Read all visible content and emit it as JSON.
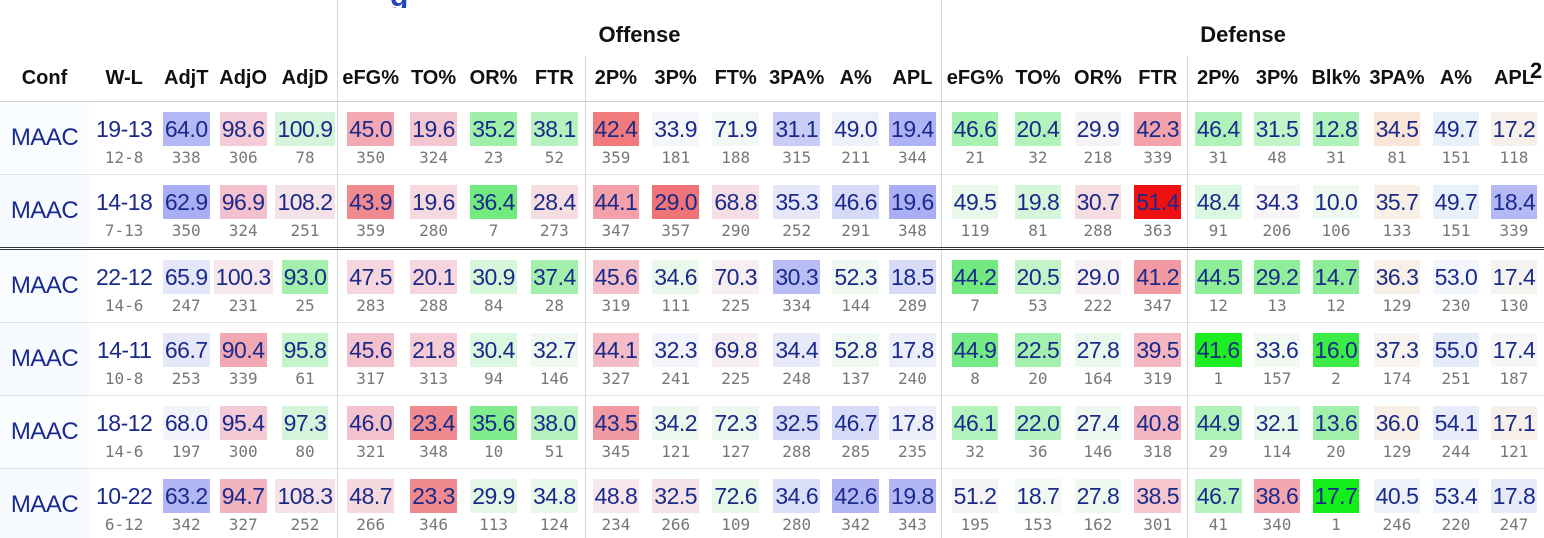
{
  "groups": {
    "offense": "Offense",
    "defense": "Defense"
  },
  "columns": [
    "Conf",
    "W-L",
    "AdjT",
    "AdjO",
    "AdjD",
    "eFG%",
    "TO%",
    "OR%",
    "FTR",
    "2P%",
    "3P%",
    "FT%",
    "3PA%",
    "A%",
    "APL",
    "eFG%",
    "TO%",
    "OR%",
    "FTR",
    "2P%",
    "3P%",
    "Blk%",
    "3PA%",
    "A%",
    "APL"
  ],
  "truncated_left_header": "g",
  "truncated_right_header": "2",
  "rows": [
    {
      "conf": "MAAC",
      "wl": "19-13",
      "wl_conf": "12-8",
      "cells": [
        {
          "v": "64.0",
          "r": "338",
          "bg": "#b4b8f5"
        },
        {
          "v": "98.6",
          "r": "306",
          "bg": "#f4ccd8"
        },
        {
          "v": "100.9",
          "r": "78",
          "bg": "#d4f5dc"
        },
        {
          "v": "45.0",
          "r": "350",
          "bg": "#f2a9b3"
        },
        {
          "v": "19.6",
          "r": "324",
          "bg": "#f4c6d0"
        },
        {
          "v": "35.2",
          "r": "23",
          "bg": "#9ef0a8"
        },
        {
          "v": "38.1",
          "r": "52",
          "bg": "#b6f2c0"
        },
        {
          "v": "42.4",
          "r": "359",
          "bg": "#f17a7c"
        },
        {
          "v": "33.9",
          "r": "181",
          "bg": "#f5f6fb"
        },
        {
          "v": "71.9",
          "r": "188",
          "bg": "#f2f8f3"
        },
        {
          "v": "31.1",
          "r": "315",
          "bg": "#c8ccf6"
        },
        {
          "v": "49.0",
          "r": "211",
          "bg": "#eef0fa"
        },
        {
          "v": "19.4",
          "r": "344",
          "bg": "#aeb3f5"
        },
        {
          "v": "46.6",
          "r": "21",
          "bg": "#a6f2b0"
        },
        {
          "v": "20.4",
          "r": "32",
          "bg": "#b2f3bc"
        },
        {
          "v": "29.9",
          "r": "218",
          "bg": "#f5f3f6"
        },
        {
          "v": "42.3",
          "r": "339",
          "bg": "#f3a2ac"
        },
        {
          "v": "46.4",
          "r": "31",
          "bg": "#b0f3ba"
        },
        {
          "v": "31.5",
          "r": "48",
          "bg": "#c2f5c8"
        },
        {
          "v": "12.8",
          "r": "31",
          "bg": "#b0f3ba"
        },
        {
          "v": "34.5",
          "r": "81",
          "bg": "#f9e6d6"
        },
        {
          "v": "49.7",
          "r": "151",
          "bg": "#e8f1fa"
        },
        {
          "v": "17.2",
          "r": "118",
          "bg": "#f7f0ea"
        }
      ]
    },
    {
      "conf": "MAAC",
      "wl": "14-18",
      "wl_conf": "7-13",
      "cells": [
        {
          "v": "62.9",
          "r": "350",
          "bg": "#a9aef5"
        },
        {
          "v": "96.9",
          "r": "324",
          "bg": "#f3c0ce"
        },
        {
          "v": "108.2",
          "r": "251",
          "bg": "#f5e2e8"
        },
        {
          "v": "43.9",
          "r": "359",
          "bg": "#f08a8f"
        },
        {
          "v": "19.6",
          "r": "280",
          "bg": "#f6d8df"
        },
        {
          "v": "36.4",
          "r": "7",
          "bg": "#72ea80"
        },
        {
          "v": "28.4",
          "r": "273",
          "bg": "#f6dde2"
        },
        {
          "v": "44.1",
          "r": "347",
          "bg": "#f3a0aa"
        },
        {
          "v": "29.0",
          "r": "357",
          "bg": "#f07378"
        },
        {
          "v": "68.8",
          "r": "290",
          "bg": "#f6dfe4"
        },
        {
          "v": "35.3",
          "r": "252",
          "bg": "#e6e8fa"
        },
        {
          "v": "46.6",
          "r": "291",
          "bg": "#d6daf7"
        },
        {
          "v": "19.6",
          "r": "348",
          "bg": "#a9aef5"
        },
        {
          "v": "49.5",
          "r": "119",
          "bg": "#e8f8ea"
        },
        {
          "v": "19.8",
          "r": "81",
          "bg": "#d6f6da"
        },
        {
          "v": "30.7",
          "r": "288",
          "bg": "#f6dde2"
        },
        {
          "v": "51.4",
          "r": "363",
          "bg": "#ee1111"
        },
        {
          "v": "48.4",
          "r": "91",
          "bg": "#dcf7e0"
        },
        {
          "v": "34.3",
          "r": "206",
          "bg": "#f7f5f8"
        },
        {
          "v": "10.0",
          "r": "106",
          "bg": "#f0f9f0"
        },
        {
          "v": "35.7",
          "r": "133",
          "bg": "#f8efe6"
        },
        {
          "v": "49.7",
          "r": "151",
          "bg": "#e8f1fa"
        },
        {
          "v": "18.4",
          "r": "339",
          "bg": "#b4b8f5"
        }
      ]
    },
    {
      "conf": "MAAC",
      "wl": "22-12",
      "wl_conf": "14-6",
      "cells": [
        {
          "v": "65.9",
          "r": "247",
          "bg": "#e4e6fa"
        },
        {
          "v": "100.3",
          "r": "231",
          "bg": "#f6e7ec"
        },
        {
          "v": "93.0",
          "r": "25",
          "bg": "#a2f0ac"
        },
        {
          "v": "47.5",
          "r": "283",
          "bg": "#f6d6de"
        },
        {
          "v": "20.1",
          "r": "288",
          "bg": "#f6d6de"
        },
        {
          "v": "30.9",
          "r": "84",
          "bg": "#d6f6da"
        },
        {
          "v": "37.4",
          "r": "28",
          "bg": "#a2f0ac"
        },
        {
          "v": "45.6",
          "r": "319",
          "bg": "#f4c0ca"
        },
        {
          "v": "34.6",
          "r": "111",
          "bg": "#eaf8ec"
        },
        {
          "v": "70.3",
          "r": "225",
          "bg": "#f6eef1"
        },
        {
          "v": "30.3",
          "r": "334",
          "bg": "#b9bdf5"
        },
        {
          "v": "52.3",
          "r": "144",
          "bg": "#eef7f0"
        },
        {
          "v": "18.5",
          "r": "289",
          "bg": "#d8dbf8"
        },
        {
          "v": "44.2",
          "r": "7",
          "bg": "#72ea80"
        },
        {
          "v": "20.5",
          "r": "53",
          "bg": "#c2f4c8"
        },
        {
          "v": "29.0",
          "r": "222",
          "bg": "#f6f0f3"
        },
        {
          "v": "41.2",
          "r": "347",
          "bg": "#f29aa2"
        },
        {
          "v": "44.5",
          "r": "12",
          "bg": "#8eee98"
        },
        {
          "v": "29.2",
          "r": "13",
          "bg": "#90ee9a"
        },
        {
          "v": "14.7",
          "r": "12",
          "bg": "#8eee98"
        },
        {
          "v": "36.3",
          "r": "129",
          "bg": "#f8efe6"
        },
        {
          "v": "53.0",
          "r": "230",
          "bg": "#f2f5fb"
        },
        {
          "v": "17.4",
          "r": "130",
          "bg": "#f5f3f0"
        }
      ]
    },
    {
      "conf": "MAAC",
      "wl": "14-11",
      "wl_conf": "10-8",
      "cells": [
        {
          "v": "66.7",
          "r": "253",
          "bg": "#e6e8fa"
        },
        {
          "v": "90.4",
          "r": "339",
          "bg": "#f2a8b2"
        },
        {
          "v": "95.8",
          "r": "61",
          "bg": "#c4f4ca"
        },
        {
          "v": "45.6",
          "r": "317",
          "bg": "#f4c2cc"
        },
        {
          "v": "21.8",
          "r": "313",
          "bg": "#f5ccd4"
        },
        {
          "v": "30.4",
          "r": "94",
          "bg": "#dcf7e0"
        },
        {
          "v": "32.7",
          "r": "146",
          "bg": "#eef8ef"
        },
        {
          "v": "44.1",
          "r": "327",
          "bg": "#f4bcc6"
        },
        {
          "v": "32.3",
          "r": "241",
          "bg": "#f2f3fb"
        },
        {
          "v": "69.8",
          "r": "225",
          "bg": "#f6eef1"
        },
        {
          "v": "34.4",
          "r": "248",
          "bg": "#e8eafa"
        },
        {
          "v": "52.8",
          "r": "137",
          "bg": "#eef7f0"
        },
        {
          "v": "17.8",
          "r": "240",
          "bg": "#eceefa"
        },
        {
          "v": "44.9",
          "r": "8",
          "bg": "#76ea84"
        },
        {
          "v": "22.5",
          "r": "20",
          "bg": "#a4f0ae"
        },
        {
          "v": "27.8",
          "r": "164",
          "bg": "#eaf8ec"
        },
        {
          "v": "39.5",
          "r": "319",
          "bg": "#f4b6c0"
        },
        {
          "v": "41.6",
          "r": "1",
          "bg": "#1cee22"
        },
        {
          "v": "33.6",
          "r": "157",
          "bg": "#f1f9f1"
        },
        {
          "v": "16.0",
          "r": "2",
          "bg": "#3cec46"
        },
        {
          "v": "37.3",
          "r": "174",
          "bg": "#f7f3ee"
        },
        {
          "v": "55.0",
          "r": "251",
          "bg": "#e6ebfa"
        },
        {
          "v": "17.4",
          "r": "187",
          "bg": "#f7f6f6"
        }
      ]
    },
    {
      "conf": "MAAC",
      "wl": "18-12",
      "wl_conf": "14-6",
      "cells": [
        {
          "v": "68.0",
          "r": "197",
          "bg": "#f2f3fb"
        },
        {
          "v": "95.4",
          "r": "300",
          "bg": "#f4cbd4"
        },
        {
          "v": "97.3",
          "r": "80",
          "bg": "#d4f5d9"
        },
        {
          "v": "46.0",
          "r": "321",
          "bg": "#f4c2cc"
        },
        {
          "v": "23.4",
          "r": "348",
          "bg": "#f08a8f"
        },
        {
          "v": "35.6",
          "r": "10",
          "bg": "#80ec8c"
        },
        {
          "v": "38.0",
          "r": "51",
          "bg": "#b6f2c0"
        },
        {
          "v": "43.5",
          "r": "345",
          "bg": "#f29aa2"
        },
        {
          "v": "34.2",
          "r": "121",
          "bg": "#ecf8ed"
        },
        {
          "v": "72.3",
          "r": "127",
          "bg": "#ecf8ed"
        },
        {
          "v": "32.5",
          "r": "288",
          "bg": "#d8dbf8"
        },
        {
          "v": "46.7",
          "r": "285",
          "bg": "#d8dbf8"
        },
        {
          "v": "17.8",
          "r": "235",
          "bg": "#eceefa"
        },
        {
          "v": "46.1",
          "r": "32",
          "bg": "#b2f3bc"
        },
        {
          "v": "22.0",
          "r": "36",
          "bg": "#b6f3c0"
        },
        {
          "v": "27.4",
          "r": "146",
          "bg": "#eef8ef"
        },
        {
          "v": "40.8",
          "r": "318",
          "bg": "#f4b6c0"
        },
        {
          "v": "44.9",
          "r": "29",
          "bg": "#aef2b8"
        },
        {
          "v": "32.1",
          "r": "114",
          "bg": "#e8f8ea"
        },
        {
          "v": "13.6",
          "r": "20",
          "bg": "#a0f0aa"
        },
        {
          "v": "36.0",
          "r": "129",
          "bg": "#f8efe6"
        },
        {
          "v": "54.1",
          "r": "244",
          "bg": "#e8ecfa"
        },
        {
          "v": "17.1",
          "r": "121",
          "bg": "#f7f0ea"
        }
      ]
    },
    {
      "conf": "MAAC",
      "wl": "10-22",
      "wl_conf": "6-12",
      "cells": [
        {
          "v": "63.2",
          "r": "342",
          "bg": "#b2b6f5"
        },
        {
          "v": "94.7",
          "r": "327",
          "bg": "#f2b4be"
        },
        {
          "v": "108.3",
          "r": "252",
          "bg": "#f5e2e8"
        },
        {
          "v": "48.7",
          "r": "266",
          "bg": "#f6d8df"
        },
        {
          "v": "23.3",
          "r": "346",
          "bg": "#f08a8f"
        },
        {
          "v": "29.9",
          "r": "113",
          "bg": "#e2f7e4"
        },
        {
          "v": "34.8",
          "r": "124",
          "bg": "#e8f8ea"
        },
        {
          "v": "48.8",
          "r": "234",
          "bg": "#f6e7ec"
        },
        {
          "v": "32.5",
          "r": "266",
          "bg": "#f6e3e8"
        },
        {
          "v": "72.6",
          "r": "109",
          "bg": "#e8f8ea"
        },
        {
          "v": "34.6",
          "r": "280",
          "bg": "#dcdff8"
        },
        {
          "v": "42.6",
          "r": "342",
          "bg": "#b2b6f5"
        },
        {
          "v": "19.8",
          "r": "343",
          "bg": "#b2b6f5"
        },
        {
          "v": "51.2",
          "r": "195",
          "bg": "#f6f3f6"
        },
        {
          "v": "18.7",
          "r": "153",
          "bg": "#f2f9f2"
        },
        {
          "v": "27.8",
          "r": "162",
          "bg": "#eef8ef"
        },
        {
          "v": "38.5",
          "r": "301",
          "bg": "#f5c6ce"
        },
        {
          "v": "46.7",
          "r": "41",
          "bg": "#b6f3c0"
        },
        {
          "v": "38.6",
          "r": "340",
          "bg": "#f2a6b0"
        },
        {
          "v": "17.7",
          "r": "1",
          "bg": "#14ee1a"
        },
        {
          "v": "40.5",
          "r": "246",
          "bg": "#eef0fa"
        },
        {
          "v": "53.4",
          "r": "220",
          "bg": "#f0f4fb"
        },
        {
          "v": "17.8",
          "r": "247",
          "bg": "#e8eafa"
        }
      ]
    }
  ]
}
